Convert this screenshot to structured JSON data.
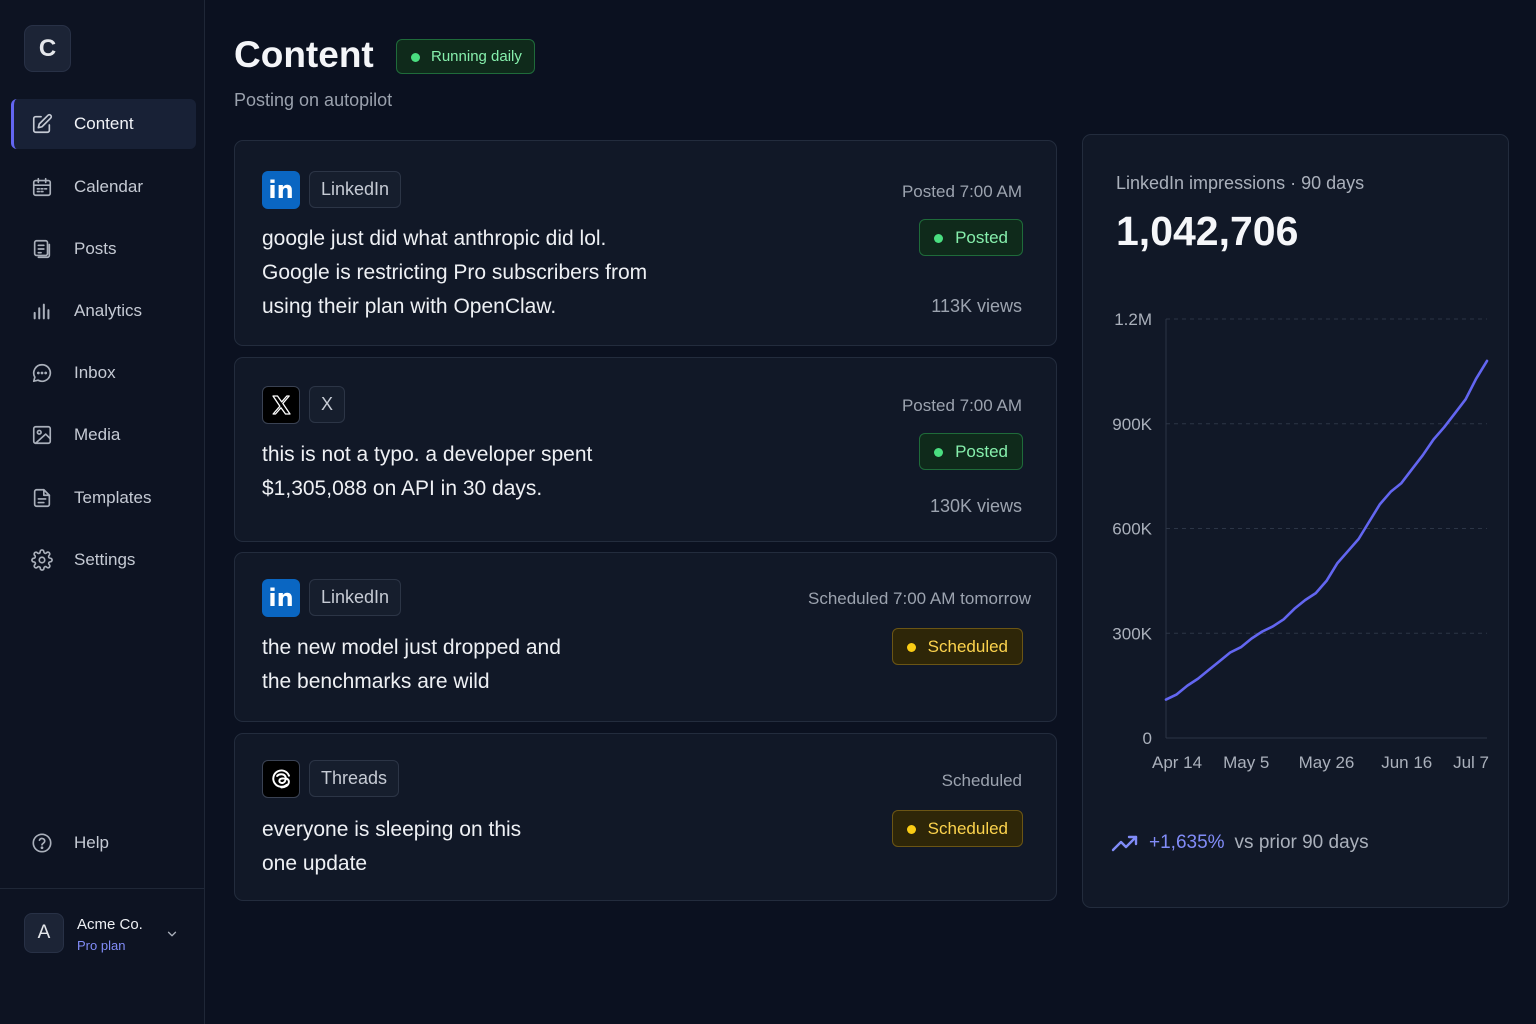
{
  "app": {
    "logo_letter": "C"
  },
  "sidebar": {
    "items": [
      {
        "label": "Content",
        "icon": "edit-icon",
        "active": true
      },
      {
        "label": "Calendar",
        "icon": "calendar-icon"
      },
      {
        "label": "Posts",
        "icon": "posts-icon"
      },
      {
        "label": "Analytics",
        "icon": "bar-chart-icon"
      },
      {
        "label": "Inbox",
        "icon": "chat-icon"
      },
      {
        "label": "Media",
        "icon": "image-icon"
      },
      {
        "label": "Templates",
        "icon": "document-icon"
      },
      {
        "label": "Settings",
        "icon": "gear-icon"
      }
    ],
    "help": {
      "label": "Help",
      "icon": "help-icon"
    },
    "account": {
      "initial": "A",
      "name": "Acme Co.",
      "plan": "Pro plan"
    }
  },
  "header": {
    "title": "Content",
    "badge": "Running daily",
    "subtitle": "Posting on autopilot"
  },
  "posts": [
    {
      "platform": "LinkedIn",
      "platform_icon": "linkedin-icon",
      "time": "Posted 7:00 AM",
      "text": "google just did what anthropic did lol.\nGoogle is restricting Pro subscribers from\nusing their plan with OpenClaw.",
      "status": "Posted",
      "views": "113K views"
    },
    {
      "platform": "X",
      "platform_icon": "x-icon",
      "time": "Posted 7:00 AM",
      "text": "this is not a typo. a developer spent\n$1,305,088 on API in 30 days.",
      "status": "Posted",
      "views": "130K views"
    },
    {
      "platform": "LinkedIn",
      "platform_icon": "linkedin-icon",
      "time": "Scheduled 7:00 AM tomorrow",
      "text": "the new model just dropped and\nthe benchmarks are wild",
      "status": "Scheduled",
      "views": ""
    },
    {
      "platform": "Threads",
      "platform_icon": "threads-icon",
      "time": "Scheduled",
      "text": "everyone is sleeping on this\none update",
      "status": "Scheduled",
      "views": ""
    }
  ],
  "analytics": {
    "title": "LinkedIn impressions · 90 days",
    "total": "1,042,706",
    "trend_value": "+1,635%",
    "trend_label": "vs prior 90 days",
    "line_color": "#6366f1"
  },
  "chart_data": {
    "type": "line",
    "title": "LinkedIn impressions · 90 days",
    "x_tick_labels": [
      "Apr 14",
      "May 5",
      "May 26",
      "Jun 16",
      "Jul 7"
    ],
    "y_tick_labels": [
      "0",
      "300K",
      "600K",
      "900K",
      "1.2M"
    ],
    "ylim": [
      0,
      1200000
    ],
    "xlim": [
      0,
      90
    ],
    "grid": true,
    "series": [
      {
        "values": [
          [
            0,
            110000
          ],
          [
            3,
            125000
          ],
          [
            6,
            150000
          ],
          [
            9,
            170000
          ],
          [
            12,
            195000
          ],
          [
            15,
            220000
          ],
          [
            18,
            245000
          ],
          [
            21,
            260000
          ],
          [
            24,
            285000
          ],
          [
            27,
            305000
          ],
          [
            30,
            320000
          ],
          [
            33,
            340000
          ],
          [
            36,
            370000
          ],
          [
            39,
            395000
          ],
          [
            42,
            415000
          ],
          [
            45,
            450000
          ],
          [
            48,
            500000
          ],
          [
            51,
            535000
          ],
          [
            54,
            570000
          ],
          [
            57,
            620000
          ],
          [
            60,
            670000
          ],
          [
            63,
            705000
          ],
          [
            66,
            730000
          ],
          [
            69,
            770000
          ],
          [
            72,
            810000
          ],
          [
            75,
            855000
          ],
          [
            78,
            890000
          ],
          [
            81,
            930000
          ],
          [
            84,
            970000
          ],
          [
            87,
            1030000
          ],
          [
            90,
            1080000
          ]
        ]
      }
    ]
  }
}
